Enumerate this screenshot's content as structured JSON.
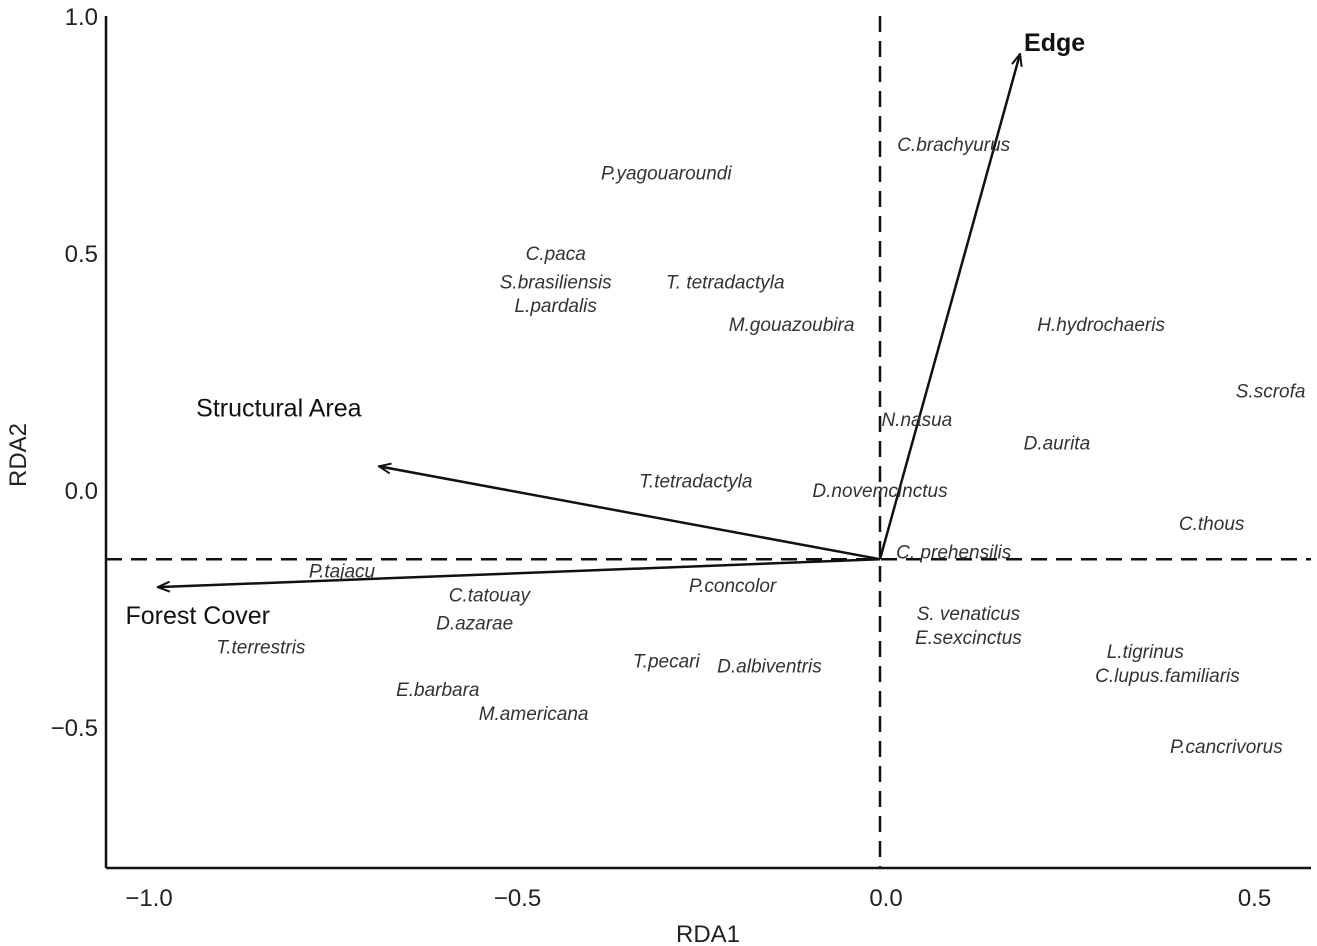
{
  "chart_data": {
    "type": "scatter",
    "title": "",
    "xlabel": "RDA1",
    "ylabel": "RDA2",
    "xlim": [
      -1.05,
      0.59
    ],
    "ylim": [
      -0.56,
      1.0
    ],
    "x_ticks": [
      {
        "value": -1.0,
        "label": "−1.0"
      },
      {
        "value": -0.5,
        "label": "−0.5"
      },
      {
        "value": 0.0,
        "label": "0.0"
      },
      {
        "value": 0.5,
        "label": "0.5"
      }
    ],
    "y_ticks": [
      {
        "value": 1.0,
        "label": "1.0"
      },
      {
        "value": 0.5,
        "label": "0.5"
      },
      {
        "value": 0.0,
        "label": "0.0"
      },
      {
        "value": -0.5,
        "label": "−0.5"
      }
    ],
    "grid": false,
    "reference_lines": {
      "x": 0.0,
      "y": -0.146
    },
    "vectors": [
      {
        "name": "Edge",
        "x_start": 0.0,
        "y_start": -0.146,
        "x_end": 0.19,
        "y_end": 0.92
      },
      {
        "name": "Structural Area",
        "x_start": 0.0,
        "y_start": -0.146,
        "x_end": -0.68,
        "y_end": 0.05
      },
      {
        "name": "Forest Cover",
        "x_start": 0.0,
        "y_start": -0.146,
        "x_end": -0.98,
        "y_end": -0.205
      }
    ],
    "species": [
      {
        "label": "C.brachyurus",
        "x": 0.1,
        "y": 0.73
      },
      {
        "label": "P.yagouaroundi",
        "x": -0.29,
        "y": 0.67
      },
      {
        "label": "C.paca",
        "x": -0.44,
        "y": 0.5
      },
      {
        "label": "S.brasiliensis",
        "x": -0.44,
        "y": 0.44
      },
      {
        "label": "T. tetradactyla",
        "x": -0.21,
        "y": 0.44
      },
      {
        "label": "L.pardalis",
        "x": -0.44,
        "y": 0.39
      },
      {
        "label": "M.gouazoubira",
        "x": -0.12,
        "y": 0.35
      },
      {
        "label": "H.hydrochaeris",
        "x": 0.3,
        "y": 0.35
      },
      {
        "label": "S.scrofa",
        "x": 0.53,
        "y": 0.21
      },
      {
        "label": "N.nasua",
        "x": 0.05,
        "y": 0.15
      },
      {
        "label": "D.aurita",
        "x": 0.24,
        "y": 0.1
      },
      {
        "label": "T.tetradactyla",
        "x": -0.25,
        "y": 0.02
      },
      {
        "label": "D.novemcinctus",
        "x": 0.0,
        "y": 0.0
      },
      {
        "label": "C.thous",
        "x": 0.45,
        "y": -0.07
      },
      {
        "label": "C. prehensilis",
        "x": 0.1,
        "y": -0.13
      },
      {
        "label": "P.tajacu",
        "x": -0.73,
        "y": -0.17
      },
      {
        "label": "C.tatouay",
        "x": -0.53,
        "y": -0.22
      },
      {
        "label": "P.concolor",
        "x": -0.2,
        "y": -0.2
      },
      {
        "label": "D.azarae",
        "x": -0.55,
        "y": -0.28
      },
      {
        "label": "T.terrestris",
        "x": -0.84,
        "y": -0.33
      },
      {
        "label": "S. venaticus",
        "x": 0.12,
        "y": -0.26
      },
      {
        "label": "E.sexcinctus",
        "x": 0.12,
        "y": -0.31
      },
      {
        "label": "L.tigrinus",
        "x": 0.36,
        "y": -0.34
      },
      {
        "label": "C.lupus.familiaris",
        "x": 0.39,
        "y": -0.39
      },
      {
        "label": "T.pecari",
        "x": -0.29,
        "y": -0.36
      },
      {
        "label": "D.albiventris",
        "x": -0.15,
        "y": -0.37
      },
      {
        "label": "E.barbara",
        "x": -0.6,
        "y": -0.42
      },
      {
        "label": "M.americana",
        "x": -0.47,
        "y": -0.47
      },
      {
        "label": "P.cancrivorus",
        "x": 0.47,
        "y": -0.54
      }
    ]
  }
}
